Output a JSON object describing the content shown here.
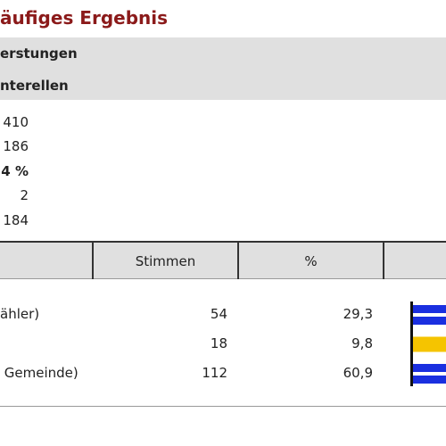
{
  "header": {
    "title": "äufiges Ergebnis"
  },
  "summary": {
    "labels": [
      "erstungen",
      "nterellen"
    ],
    "stats": [
      "410",
      "186",
      "4 %",
      "2",
      "184"
    ]
  },
  "table": {
    "columns": [
      "Stimmen",
      "%"
    ],
    "rows": [
      {
        "label": "ähler)",
        "votes": "54",
        "percent": "29,3"
      },
      {
        "votes": "18",
        "percent": "9,8"
      },
      {
        "label": " Gemeinde)",
        "votes": "112",
        "percent": "60,9"
      }
    ]
  }
}
